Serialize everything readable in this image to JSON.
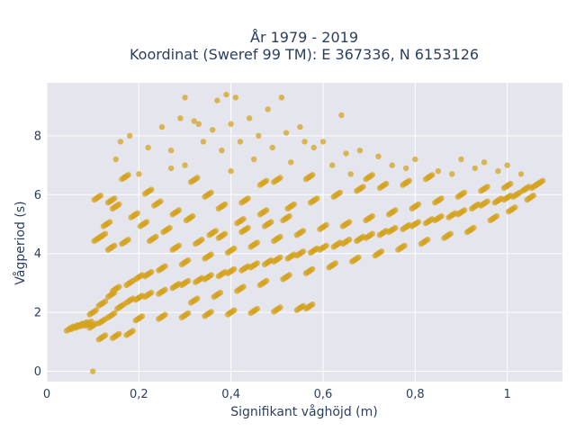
{
  "chart_data": {
    "type": "scatter",
    "title": "År 1979 - 2019",
    "subtitle": "Koordinat (Sweref 99 TM): E 367336, N 6153126",
    "xlabel": "Signifikant våghöjd (m)",
    "ylabel": "Vågperiod (s)",
    "xlim": [
      0,
      1.12
    ],
    "ylim": [
      -0.35,
      9.8
    ],
    "x_ticks": [
      0,
      0.2,
      0.4,
      0.6,
      0.8,
      1
    ],
    "x_tick_labels": [
      "0",
      "0,2",
      "0,4",
      "0,6",
      "0,8",
      "1"
    ],
    "y_ticks": [
      0,
      2,
      4,
      6,
      8
    ],
    "y_tick_labels": [
      "0",
      "2",
      "4",
      "6",
      "8"
    ],
    "grid": true,
    "background": "#e5e5ee",
    "marker_color": "#d4a31f",
    "series": [
      {
        "points": [
          [
            0.05,
            1.45
          ],
          [
            0.06,
            1.5
          ],
          [
            0.07,
            1.55
          ],
          [
            0.08,
            1.6
          ],
          [
            0.09,
            1.62
          ],
          [
            0.1,
            0.0
          ],
          [
            0.1,
            1.55
          ],
          [
            0.1,
            2.0
          ],
          [
            0.12,
            1.7
          ],
          [
            0.12,
            2.3
          ],
          [
            0.14,
            1.9
          ],
          [
            0.14,
            2.6
          ],
          [
            0.15,
            2.8
          ],
          [
            0.16,
            2.2
          ],
          [
            0.18,
            2.4
          ],
          [
            0.18,
            3.0
          ],
          [
            0.2,
            2.5
          ],
          [
            0.2,
            3.2
          ],
          [
            0.22,
            2.6
          ],
          [
            0.22,
            3.3
          ],
          [
            0.25,
            2.7
          ],
          [
            0.25,
            3.5
          ],
          [
            0.28,
            2.9
          ],
          [
            0.3,
            3.0
          ],
          [
            0.3,
            3.7
          ],
          [
            0.33,
            3.1
          ],
          [
            0.35,
            3.2
          ],
          [
            0.35,
            3.9
          ],
          [
            0.38,
            3.3
          ],
          [
            0.4,
            3.4
          ],
          [
            0.4,
            4.1
          ],
          [
            0.43,
            3.5
          ],
          [
            0.45,
            3.6
          ],
          [
            0.45,
            4.3
          ],
          [
            0.48,
            3.7
          ],
          [
            0.5,
            3.8
          ],
          [
            0.5,
            4.5
          ],
          [
            0.53,
            3.9
          ],
          [
            0.55,
            4.0
          ],
          [
            0.55,
            4.7
          ],
          [
            0.58,
            4.1
          ],
          [
            0.6,
            4.2
          ],
          [
            0.6,
            4.9
          ],
          [
            0.63,
            4.3
          ],
          [
            0.65,
            4.4
          ],
          [
            0.65,
            5.0
          ],
          [
            0.68,
            4.5
          ],
          [
            0.7,
            4.6
          ],
          [
            0.7,
            5.2
          ],
          [
            0.73,
            4.7
          ],
          [
            0.75,
            4.8
          ],
          [
            0.75,
            5.4
          ],
          [
            0.78,
            4.9
          ],
          [
            0.8,
            5.0
          ],
          [
            0.8,
            5.6
          ],
          [
            0.83,
            5.1
          ],
          [
            0.85,
            5.2
          ],
          [
            0.85,
            5.8
          ],
          [
            0.88,
            5.3
          ],
          [
            0.9,
            5.4
          ],
          [
            0.9,
            6.0
          ],
          [
            0.93,
            5.6
          ],
          [
            0.95,
            5.7
          ],
          [
            0.95,
            6.2
          ],
          [
            0.98,
            5.8
          ],
          [
            1.0,
            5.9
          ],
          [
            1.0,
            6.3
          ],
          [
            1.02,
            6.0
          ],
          [
            1.04,
            6.2
          ],
          [
            1.06,
            6.3
          ],
          [
            1.07,
            6.4
          ],
          [
            0.9,
            7.2
          ],
          [
            0.95,
            7.1
          ],
          [
            1.0,
            7.0
          ],
          [
            1.03,
            6.7
          ],
          [
            0.2,
            1.8
          ],
          [
            0.25,
            1.85
          ],
          [
            0.3,
            1.9
          ],
          [
            0.35,
            1.95
          ],
          [
            0.4,
            2.0
          ],
          [
            0.45,
            2.05
          ],
          [
            0.5,
            2.1
          ],
          [
            0.55,
            2.15
          ],
          [
            0.57,
            2.2
          ],
          [
            0.18,
            1.3
          ],
          [
            0.15,
            1.2
          ],
          [
            0.12,
            1.15
          ],
          [
            0.11,
            5.9
          ],
          [
            0.12,
            4.6
          ],
          [
            0.11,
            4.5
          ],
          [
            0.14,
            5.8
          ],
          [
            0.15,
            7.2
          ],
          [
            0.16,
            7.8
          ],
          [
            0.18,
            8.0
          ],
          [
            0.17,
            6.6
          ],
          [
            0.15,
            5.6
          ],
          [
            0.14,
            4.2
          ],
          [
            0.19,
            5.3
          ],
          [
            0.2,
            6.7
          ],
          [
            0.22,
            7.6
          ],
          [
            0.22,
            6.1
          ],
          [
            0.23,
            4.5
          ],
          [
            0.24,
            5.7
          ],
          [
            0.25,
            8.3
          ],
          [
            0.27,
            7.5
          ],
          [
            0.27,
            6.9
          ],
          [
            0.28,
            5.4
          ],
          [
            0.29,
            8.6
          ],
          [
            0.3,
            9.3
          ],
          [
            0.3,
            7.0
          ],
          [
            0.32,
            8.5
          ],
          [
            0.32,
            6.5
          ],
          [
            0.33,
            8.4
          ],
          [
            0.34,
            7.8
          ],
          [
            0.35,
            6.0
          ],
          [
            0.36,
            8.2
          ],
          [
            0.37,
            9.2
          ],
          [
            0.38,
            7.5
          ],
          [
            0.38,
            5.6
          ],
          [
            0.39,
            9.4
          ],
          [
            0.4,
            8.4
          ],
          [
            0.4,
            6.8
          ],
          [
            0.41,
            9.3
          ],
          [
            0.42,
            7.8
          ],
          [
            0.43,
            5.8
          ],
          [
            0.44,
            8.6
          ],
          [
            0.45,
            7.2
          ],
          [
            0.46,
            8.0
          ],
          [
            0.47,
            6.4
          ],
          [
            0.48,
            8.9
          ],
          [
            0.49,
            7.6
          ],
          [
            0.5,
            6.5
          ],
          [
            0.51,
            9.3
          ],
          [
            0.52,
            8.1
          ],
          [
            0.53,
            7.1
          ],
          [
            0.55,
            8.3
          ],
          [
            0.56,
            7.8
          ],
          [
            0.57,
            6.6
          ],
          [
            0.58,
            7.6
          ],
          [
            0.6,
            7.8
          ],
          [
            0.62,
            7.0
          ],
          [
            0.64,
            8.7
          ],
          [
            0.65,
            7.4
          ],
          [
            0.66,
            6.7
          ],
          [
            0.68,
            7.5
          ],
          [
            0.7,
            6.6
          ],
          [
            0.72,
            7.3
          ],
          [
            0.75,
            7.0
          ],
          [
            0.78,
            6.9
          ],
          [
            0.8,
            7.2
          ],
          [
            0.85,
            6.8
          ],
          [
            0.13,
            5.0
          ],
          [
            0.17,
            4.4
          ],
          [
            0.21,
            5.0
          ],
          [
            0.26,
            4.8
          ],
          [
            0.31,
            5.2
          ],
          [
            0.36,
            4.7
          ],
          [
            0.42,
            5.1
          ],
          [
            0.47,
            5.4
          ],
          [
            0.53,
            5.6
          ],
          [
            0.58,
            5.8
          ],
          [
            0.63,
            6.0
          ],
          [
            0.68,
            6.2
          ],
          [
            0.73,
            6.3
          ],
          [
            0.78,
            6.4
          ],
          [
            0.83,
            6.6
          ],
          [
            0.88,
            6.7
          ],
          [
            0.93,
            6.9
          ],
          [
            0.98,
            6.8
          ],
          [
            0.28,
            4.2
          ],
          [
            0.33,
            4.4
          ],
          [
            0.38,
            4.6
          ],
          [
            0.43,
            4.8
          ],
          [
            0.48,
            5.0
          ],
          [
            0.52,
            5.2
          ],
          [
            0.32,
            2.4
          ],
          [
            0.37,
            2.6
          ],
          [
            0.42,
            2.8
          ],
          [
            0.47,
            3.0
          ],
          [
            0.52,
            3.2
          ],
          [
            0.57,
            3.4
          ],
          [
            0.62,
            3.6
          ],
          [
            0.67,
            3.8
          ],
          [
            0.72,
            4.0
          ],
          [
            0.77,
            4.2
          ],
          [
            0.82,
            4.4
          ],
          [
            0.87,
            4.6
          ],
          [
            0.92,
            4.8
          ],
          [
            0.97,
            5.2
          ],
          [
            1.01,
            5.5
          ],
          [
            1.05,
            5.9
          ]
        ]
      }
    ]
  }
}
